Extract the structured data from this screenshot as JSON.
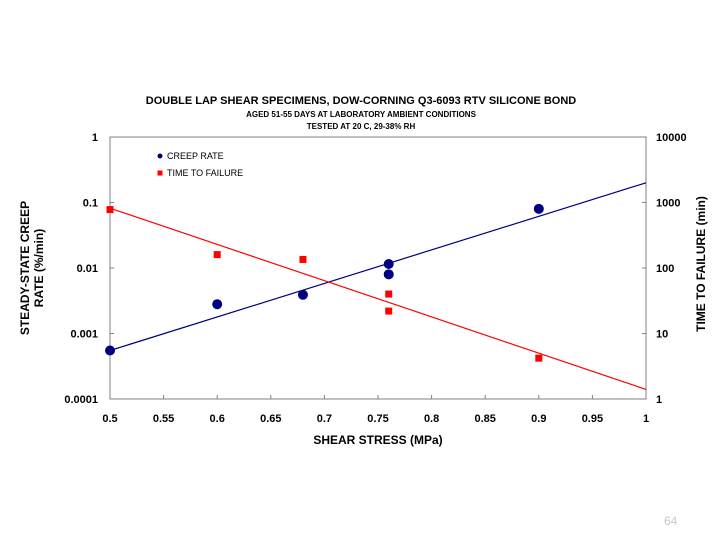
{
  "chart_data": {
    "type": "scatter",
    "title": "DOUBLE LAP SHEAR SPECIMENS, DOW-CORNING Q3-6093 RTV SILICONE BOND",
    "subtitle_lines": [
      "AGED 51-55 DAYS AT LABORATORY AMBIENT CONDITIONS",
      "TESTED AT 20 C, 29-38% RH"
    ],
    "xlabel": "SHEAR STRESS (MPa)",
    "ylabel_left": "STEADY-STATE CREEP RATE (%/min)",
    "ylabel_left_lines": [
      "STEADY-STATE CREEP",
      "RATE (%/min)"
    ],
    "ylabel_right": "TIME TO FAILURE (min)",
    "xlim": [
      0.5,
      1
    ],
    "ylim_left": [
      0.0001,
      1
    ],
    "ylim_right": [
      1,
      10000
    ],
    "y_scale": "log",
    "grid": false,
    "legend_position": "top-left",
    "x_ticks": [
      "0.5",
      "0.55",
      "0.6",
      "0.65",
      "0.7",
      "0.75",
      "0.8",
      "0.85",
      "0.9",
      "0.95",
      "1"
    ],
    "left_ticks": [
      "1",
      "0.1",
      "0.01",
      "0.001",
      "0.0001"
    ],
    "right_ticks": [
      "10000",
      "1000",
      "100",
      "10",
      "1"
    ],
    "series": [
      {
        "name": "CREEP RATE",
        "axis": "left",
        "marker": "circle",
        "color": "#000080",
        "points": [
          {
            "x": 0.5,
            "y": 0.00055
          },
          {
            "x": 0.6,
            "y": 0.0028
          },
          {
            "x": 0.68,
            "y": 0.0039
          },
          {
            "x": 0.76,
            "y": 0.0115
          },
          {
            "x": 0.76,
            "y": 0.008
          },
          {
            "x": 0.9,
            "y": 0.08
          }
        ],
        "trendline": {
          "x": [
            0.5,
            1
          ],
          "y": [
            0.00055,
            0.2
          ]
        }
      },
      {
        "name": "TIME TO FAILURE",
        "axis": "right",
        "marker": "square",
        "color": "#ff0000",
        "points": [
          {
            "x": 0.5,
            "y": 780
          },
          {
            "x": 0.6,
            "y": 160
          },
          {
            "x": 0.68,
            "y": 135
          },
          {
            "x": 0.76,
            "y": 40
          },
          {
            "x": 0.76,
            "y": 22
          },
          {
            "x": 0.9,
            "y": 4.2
          }
        ],
        "trendline": {
          "x": [
            0.5,
            1
          ],
          "y": [
            820,
            1.4
          ]
        }
      }
    ]
  },
  "footer": {
    "page_number": "64"
  }
}
